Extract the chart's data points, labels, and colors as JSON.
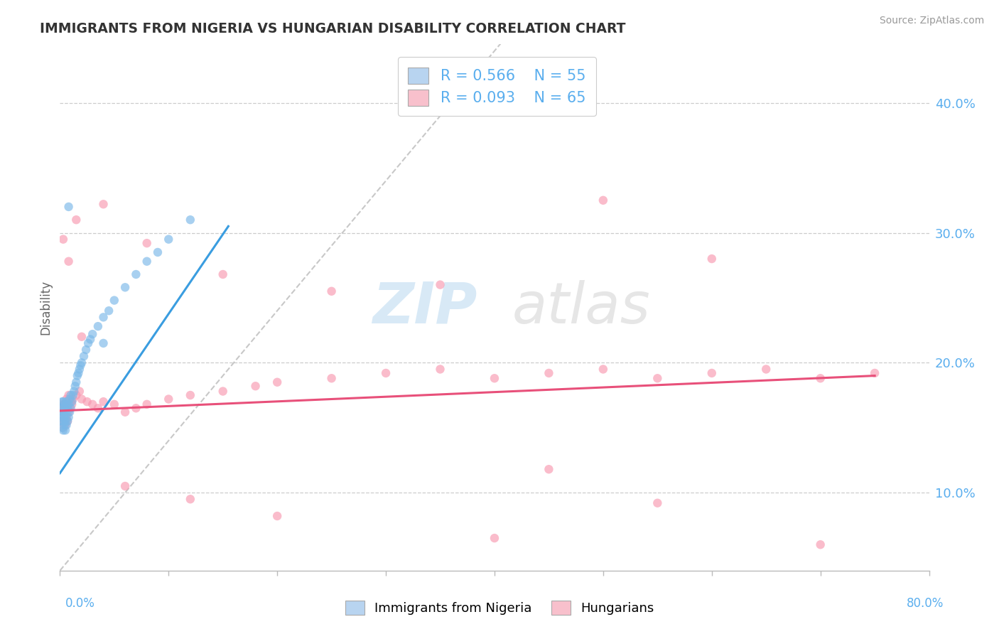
{
  "title": "IMMIGRANTS FROM NIGERIA VS HUNGARIAN DISABILITY CORRELATION CHART",
  "source": "Source: ZipAtlas.com",
  "ylabel": "Disability",
  "right_yticks": [
    "10.0%",
    "20.0%",
    "30.0%",
    "40.0%"
  ],
  "right_ytick_vals": [
    0.1,
    0.2,
    0.3,
    0.4
  ],
  "xlim": [
    0.0,
    0.8
  ],
  "ylim": [
    0.04,
    0.445
  ],
  "blue_R": "0.566",
  "blue_N": "55",
  "pink_R": "0.093",
  "pink_N": "65",
  "blue_legend_color": "#b8d4f0",
  "pink_legend_color": "#f8c0cc",
  "blue_scatter_color": "#7ab8e8",
  "pink_scatter_color": "#f898b0",
  "legend1_label": "Immigrants from Nigeria",
  "legend2_label": "Hungarians",
  "watermark_zip": "ZIP",
  "watermark_atlas": "atlas",
  "blue_trend_start_x": 0.0,
  "blue_trend_end_x": 0.155,
  "blue_trend_start_y": 0.115,
  "blue_trend_end_y": 0.305,
  "pink_trend_start_x": 0.0,
  "pink_trend_end_x": 0.75,
  "pink_trend_start_y": 0.163,
  "pink_trend_end_y": 0.19,
  "blue_x": [
    0.001,
    0.001,
    0.001,
    0.002,
    0.002,
    0.002,
    0.002,
    0.003,
    0.003,
    0.003,
    0.003,
    0.004,
    0.004,
    0.004,
    0.005,
    0.005,
    0.005,
    0.006,
    0.006,
    0.006,
    0.007,
    0.007,
    0.008,
    0.008,
    0.009,
    0.009,
    0.01,
    0.01,
    0.011,
    0.012,
    0.013,
    0.014,
    0.015,
    0.016,
    0.017,
    0.018,
    0.019,
    0.02,
    0.022,
    0.024,
    0.026,
    0.028,
    0.03,
    0.035,
    0.04,
    0.045,
    0.05,
    0.06,
    0.07,
    0.08,
    0.09,
    0.1,
    0.12,
    0.008,
    0.04
  ],
  "blue_y": [
    0.155,
    0.16,
    0.165,
    0.15,
    0.158,
    0.165,
    0.17,
    0.148,
    0.155,
    0.162,
    0.17,
    0.152,
    0.16,
    0.168,
    0.148,
    0.155,
    0.165,
    0.152,
    0.16,
    0.17,
    0.155,
    0.165,
    0.158,
    0.168,
    0.162,
    0.172,
    0.165,
    0.175,
    0.17,
    0.175,
    0.178,
    0.182,
    0.185,
    0.19,
    0.192,
    0.195,
    0.198,
    0.2,
    0.205,
    0.21,
    0.215,
    0.218,
    0.222,
    0.228,
    0.235,
    0.24,
    0.248,
    0.258,
    0.268,
    0.278,
    0.285,
    0.295,
    0.31,
    0.32,
    0.215
  ],
  "pink_x": [
    0.001,
    0.001,
    0.002,
    0.002,
    0.003,
    0.003,
    0.004,
    0.004,
    0.005,
    0.005,
    0.006,
    0.006,
    0.007,
    0.007,
    0.008,
    0.008,
    0.009,
    0.01,
    0.011,
    0.012,
    0.015,
    0.018,
    0.02,
    0.025,
    0.03,
    0.035,
    0.04,
    0.05,
    0.06,
    0.07,
    0.08,
    0.1,
    0.12,
    0.15,
    0.18,
    0.2,
    0.25,
    0.3,
    0.35,
    0.4,
    0.45,
    0.5,
    0.55,
    0.6,
    0.65,
    0.7,
    0.75,
    0.003,
    0.008,
    0.015,
    0.04,
    0.08,
    0.15,
    0.25,
    0.35,
    0.5,
    0.6,
    0.02,
    0.06,
    0.12,
    0.2,
    0.4,
    0.55,
    0.7,
    0.45
  ],
  "pink_y": [
    0.16,
    0.168,
    0.155,
    0.165,
    0.15,
    0.162,
    0.155,
    0.168,
    0.152,
    0.165,
    0.158,
    0.172,
    0.155,
    0.168,
    0.162,
    0.175,
    0.165,
    0.17,
    0.168,
    0.172,
    0.175,
    0.178,
    0.172,
    0.17,
    0.168,
    0.165,
    0.17,
    0.168,
    0.162,
    0.165,
    0.168,
    0.172,
    0.175,
    0.178,
    0.182,
    0.185,
    0.188,
    0.192,
    0.195,
    0.188,
    0.192,
    0.195,
    0.188,
    0.192,
    0.195,
    0.188,
    0.192,
    0.295,
    0.278,
    0.31,
    0.322,
    0.292,
    0.268,
    0.255,
    0.26,
    0.325,
    0.28,
    0.22,
    0.105,
    0.095,
    0.082,
    0.065,
    0.092,
    0.06,
    0.118
  ]
}
